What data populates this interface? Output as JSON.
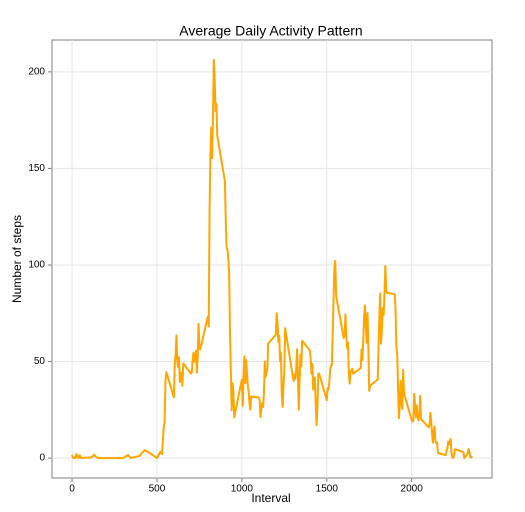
{
  "chart_data": {
    "type": "line",
    "title": "Average Daily Activity Pattern",
    "x_label": "Interval",
    "y_label": "Number of steps",
    "x": [
      0,
      5,
      10,
      15,
      20,
      25,
      30,
      35,
      40,
      45,
      50,
      55,
      100,
      110,
      125,
      130,
      145,
      155,
      200,
      230,
      300,
      330,
      345,
      400,
      410,
      430,
      440,
      450,
      500,
      520,
      530,
      540,
      545,
      550,
      555,
      600,
      605,
      610,
      615,
      620,
      625,
      630,
      635,
      640,
      645,
      650,
      655,
      700,
      705,
      710,
      715,
      720,
      725,
      730,
      735,
      740,
      745,
      750,
      755,
      800,
      805,
      810,
      815,
      820,
      825,
      830,
      835,
      840,
      845,
      850,
      855,
      900,
      905,
      910,
      915,
      920,
      925,
      930,
      935,
      940,
      945,
      950,
      955,
      1000,
      1005,
      1010,
      1015,
      1020,
      1025,
      1030,
      1035,
      1040,
      1045,
      1050,
      1055,
      1100,
      1105,
      1110,
      1115,
      1120,
      1125,
      1130,
      1135,
      1140,
      1145,
      1150,
      1155,
      1200,
      1205,
      1210,
      1215,
      1220,
      1225,
      1230,
      1235,
      1240,
      1245,
      1250,
      1255,
      1300,
      1305,
      1310,
      1315,
      1320,
      1325,
      1330,
      1335,
      1340,
      1345,
      1350,
      1355,
      1400,
      1405,
      1410,
      1415,
      1420,
      1425,
      1430,
      1435,
      1440,
      1445,
      1450,
      1455,
      1500,
      1505,
      1510,
      1515,
      1520,
      1525,
      1530,
      1535,
      1540,
      1545,
      1550,
      1555,
      1600,
      1605,
      1610,
      1615,
      1620,
      1625,
      1630,
      1635,
      1640,
      1645,
      1650,
      1655,
      1700,
      1705,
      1710,
      1715,
      1720,
      1725,
      1730,
      1735,
      1740,
      1745,
      1750,
      1755,
      1800,
      1805,
      1810,
      1815,
      1820,
      1825,
      1830,
      1835,
      1840,
      1845,
      1850,
      1855,
      1900,
      1905,
      1910,
      1915,
      1920,
      1925,
      1930,
      1935,
      1940,
      1945,
      1950,
      1955,
      2000,
      2005,
      2010,
      2015,
      2020,
      2025,
      2030,
      2035,
      2040,
      2045,
      2050,
      2055,
      2100,
      2105,
      2110,
      2115,
      2120,
      2125,
      2130,
      2135,
      2140,
      2145,
      2150,
      2155,
      2200,
      2205,
      2210,
      2215,
      2220,
      2225,
      2230,
      2235,
      2240,
      2245,
      2250,
      2255,
      2300,
      2305,
      2310,
      2315,
      2320,
      2325,
      2330,
      2335,
      2340,
      2345,
      2350,
      2355
    ],
    "series": [
      {
        "color": "#FFA500",
        "values": [
          1.7,
          0.3,
          0.1,
          0.2,
          0.1,
          2.1,
          0.5,
          0.9,
          0,
          1.5,
          0.3,
          0.1,
          0.3,
          0.2,
          1.1,
          1.8,
          0.4,
          0,
          0,
          0,
          0,
          1.6,
          0.1,
          1.2,
          2.6,
          4.1,
          3.5,
          3.1,
          0,
          3.3,
          2.1,
          16,
          18.3,
          39.5,
          44.5,
          31.5,
          49.3,
          53.8,
          63.5,
          50,
          47.1,
          52.2,
          39.3,
          44.1,
          44.2,
          37.4,
          49,
          43.8,
          44.4,
          50.5,
          54.5,
          49.9,
          50.9,
          55.7,
          44.3,
          52.3,
          69.5,
          57.8,
          56.2,
          73.4,
          68.2,
          129.4,
          157.5,
          171.2,
          155.4,
          177.3,
          206.2,
          195.9,
          179.6,
          183.4,
          167,
          143.5,
          124,
          109.1,
          108.1,
          103.7,
          95.9,
          66.2,
          45.2,
          24.8,
          38.8,
          35,
          21.1,
          40.6,
          27,
          42.4,
          52.7,
          38.9,
          50.8,
          44.3,
          37.4,
          34.7,
          28.3,
          25.1,
          31.9,
          31.4,
          29.7,
          21.3,
          25.5,
          28.4,
          26.5,
          33.4,
          50,
          42,
          44.6,
          46,
          59.3,
          63.9,
          75,
          70,
          60,
          63.4,
          50.2,
          54.5,
          32.4,
          26.5,
          37.7,
          45.1,
          67.3,
          42.3,
          39.9,
          43.3,
          41,
          46.2,
          56.4,
          42.8,
          25.1,
          40,
          53.5,
          47.3,
          60.8,
          55.8,
          52,
          43.6,
          48.7,
          35.5,
          37.5,
          41.8,
          27.5,
          17.1,
          26.1,
          43.6,
          43.8,
          30,
          36.1,
          35.5,
          38.8,
          46,
          47.8,
          48.1,
          65.3,
          82.9,
          98.7,
          102.1,
          84,
          62.1,
          64.1,
          74.5,
          63.2,
          56.9,
          59.8,
          43.9,
          38.6,
          44.7,
          45.5,
          46.2,
          43.7,
          46.6,
          56.3,
          50.7,
          61.2,
          73.4,
          79,
          68.9,
          59.7,
          75.1,
          56.5,
          34.8,
          37.5,
          40.7,
          58,
          74.7,
          85.3,
          59.3,
          67.8,
          77.7,
          74.2,
          85.3,
          99.5,
          86.6,
          85.6,
          84.9,
          77.8,
          58,
          53.4,
          36.3,
          20.7,
          27.4,
          40,
          30.2,
          25.5,
          45.7,
          33.5,
          19.6,
          19,
          19.3,
          33.3,
          26.8,
          21.2,
          27.3,
          21.3,
          19.5,
          21.3,
          32.3,
          20.2,
          15.9,
          17.2,
          23.5,
          19.2,
          12.5,
          8,
          14.7,
          16.3,
          8.7,
          7.8,
          8.1,
          2.6,
          1.5,
          3.7,
          4.8,
          8.5,
          7.1,
          8.7,
          9.8,
          2.2,
          0.3,
          0.1,
          1.6,
          4.6,
          3.3,
          2.8,
          0,
          0.8,
          1,
          1.6,
          2.6,
          4.7,
          3.3,
          0.6,
          0.2,
          1.1
        ]
      }
    ],
    "xlim": [
      -118,
      2473
    ],
    "xticks": [
      0,
      500,
      1000,
      1500,
      2000
    ],
    "ylim": [
      -10.3,
      216.5
    ],
    "yticks": [
      0,
      50,
      100,
      150,
      200
    ],
    "grid": true
  }
}
